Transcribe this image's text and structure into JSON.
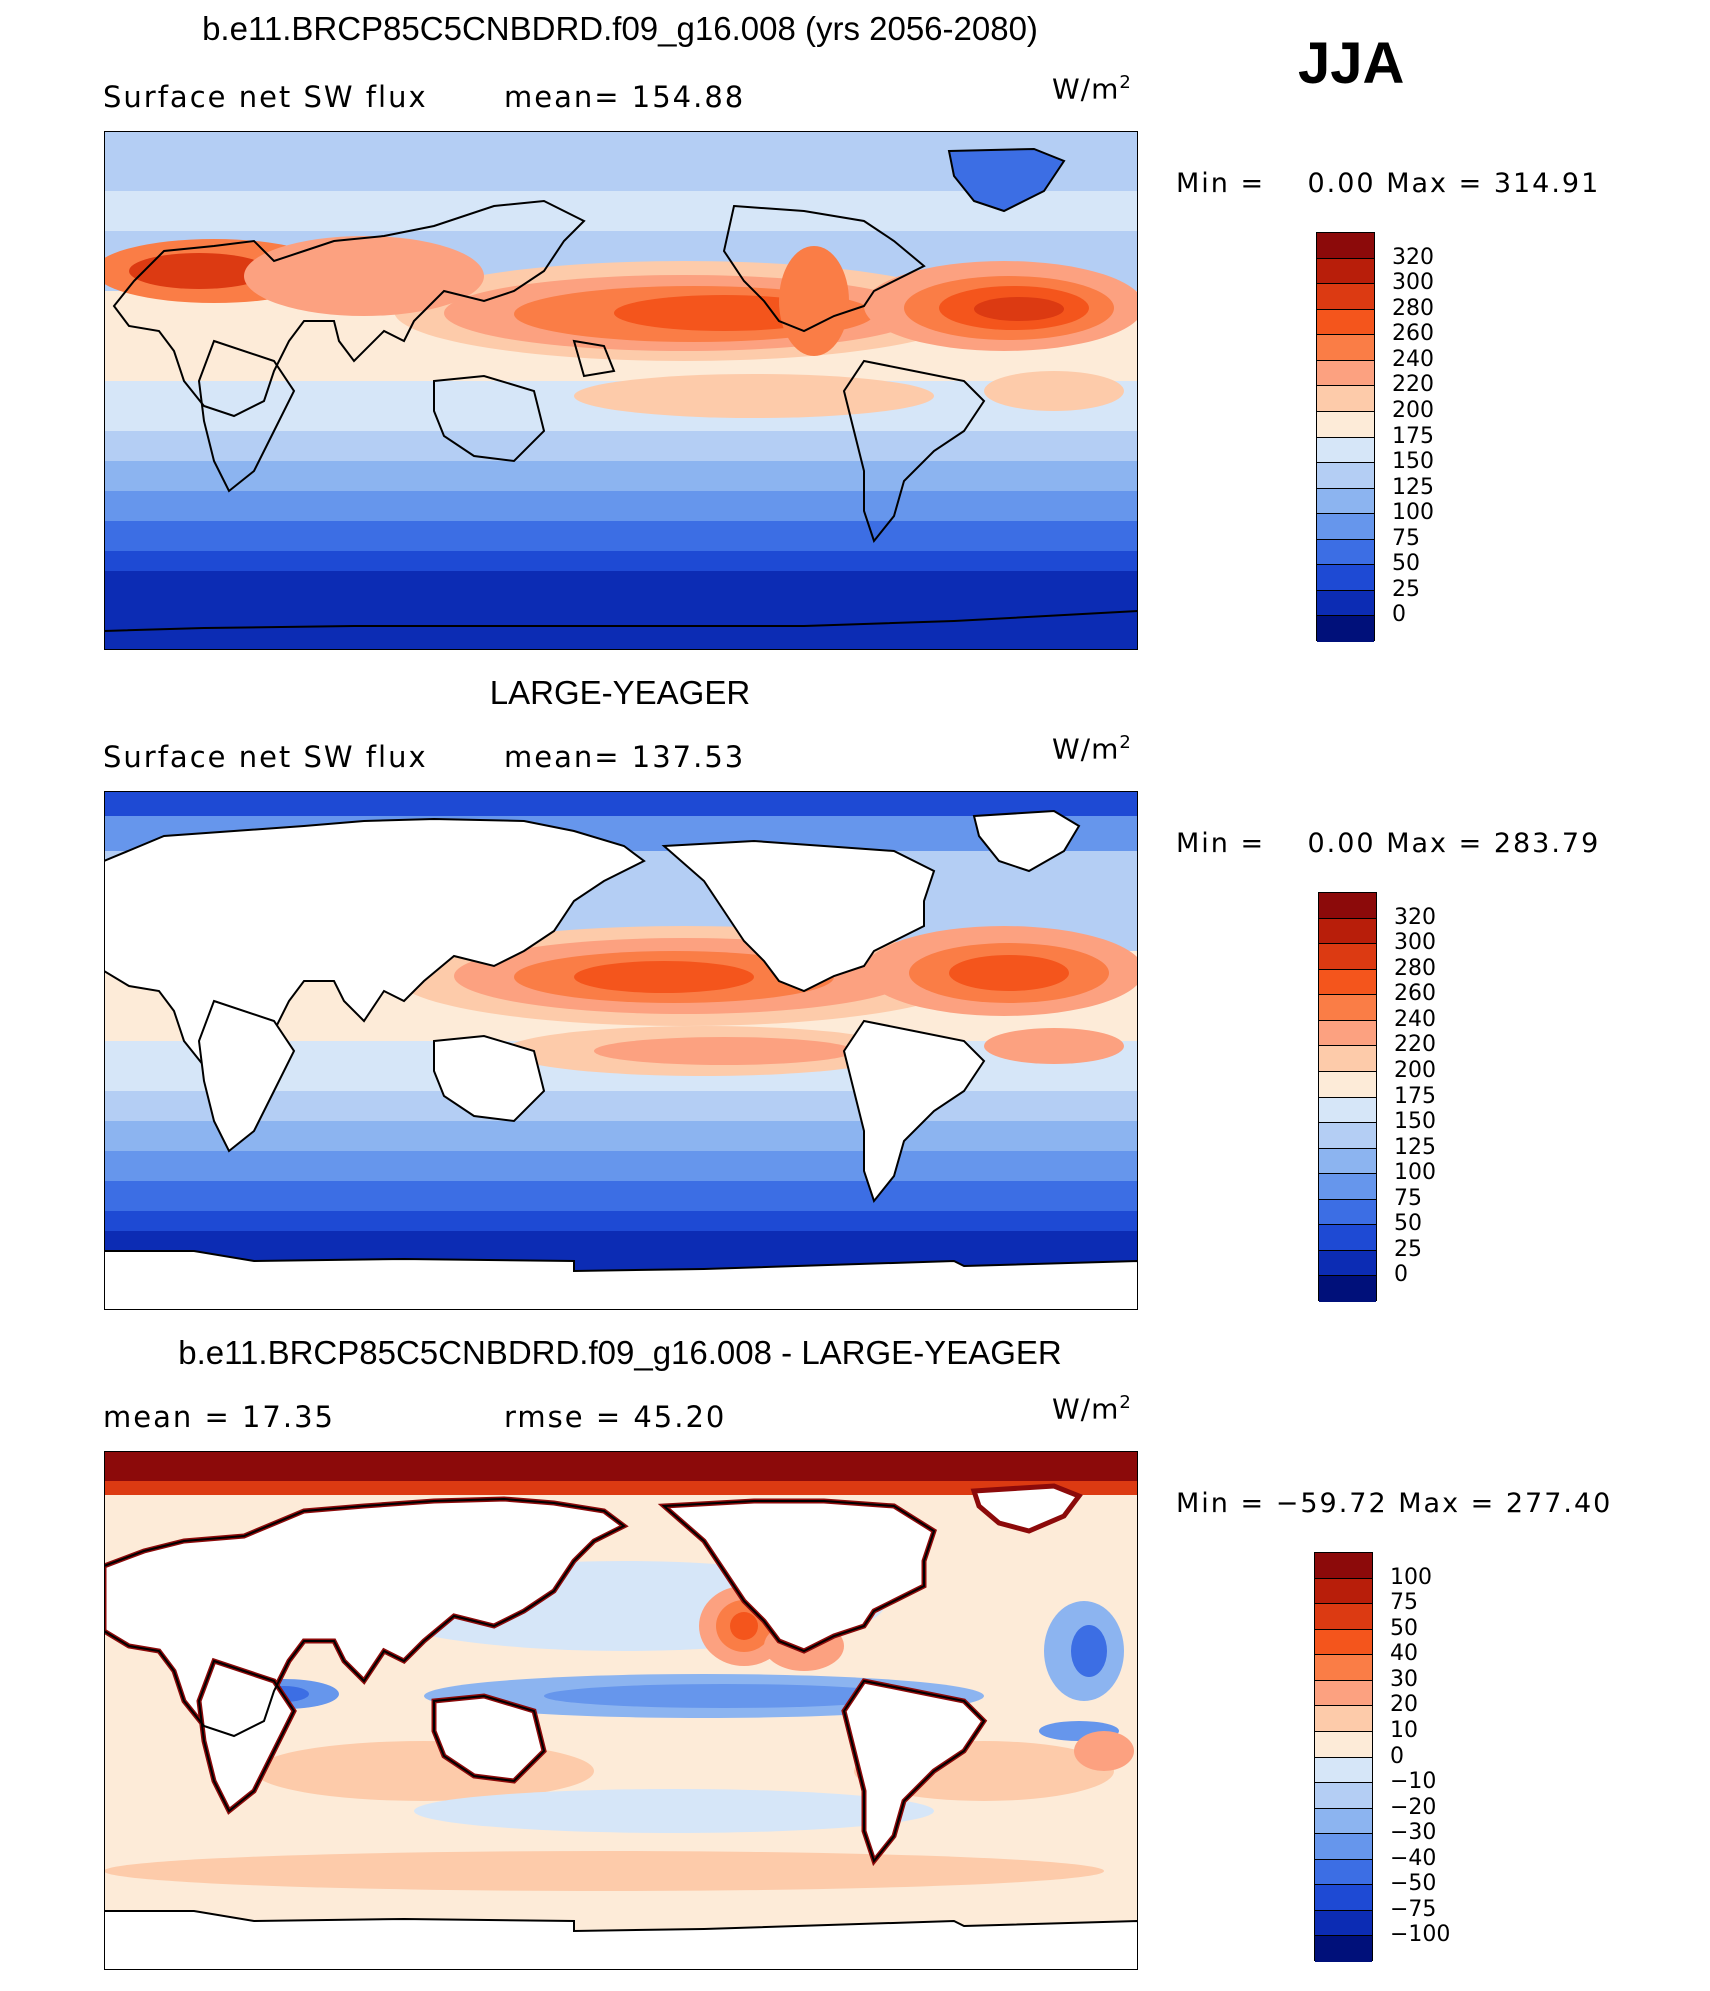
{
  "season": "JJA",
  "panels": [
    {
      "title": "b.e11.BRCP85C5CNBDRD.f09_g16.008 (yrs 2056-2080)",
      "left_label": "Surface net SW flux",
      "mid_label": "mean=  154.88",
      "units": "W/m",
      "units_exp": "2",
      "min_label": "Min =",
      "min_value": "0.00",
      "max_label": "Max =",
      "max_value": "314.91",
      "levels": [
        "320",
        "300",
        "280",
        "260",
        "240",
        "220",
        "200",
        "175",
        "150",
        "125",
        "100",
        "75",
        "50",
        "25",
        "0"
      ],
      "colors": [
        "#8c0a0a",
        "#b81e0a",
        "#dc3a12",
        "#f4551c",
        "#fa7d46",
        "#fca180",
        "#fdcbaa",
        "#fdebd8",
        "#d6e6f8",
        "#b4cef4",
        "#8cb4f0",
        "#6696ec",
        "#3c6ee4",
        "#1e4ad4",
        "#0c2cb4",
        "#00107a"
      ],
      "land_fill": false
    },
    {
      "title": "LARGE-YEAGER",
      "left_label": "Surface net SW flux",
      "mid_label": "mean=  137.53",
      "units": "W/m",
      "units_exp": "2",
      "min_label": "Min =",
      "min_value": "0.00",
      "max_label": "Max =",
      "max_value": "283.79",
      "levels": [
        "320",
        "300",
        "280",
        "260",
        "240",
        "220",
        "200",
        "175",
        "150",
        "125",
        "100",
        "75",
        "50",
        "25",
        "0"
      ],
      "colors": [
        "#8c0a0a",
        "#b81e0a",
        "#dc3a12",
        "#f4551c",
        "#fa7d46",
        "#fca180",
        "#fdcbaa",
        "#fdebd8",
        "#d6e6f8",
        "#b4cef4",
        "#8cb4f0",
        "#6696ec",
        "#3c6ee4",
        "#1e4ad4",
        "#0c2cb4",
        "#00107a"
      ],
      "land_fill": true
    },
    {
      "title": "b.e11.BRCP85C5CNBDRD.f09_g16.008 - LARGE-YEAGER",
      "left_label": "mean =    17.35",
      "mid_label": "rmse =    45.20",
      "units": "W/m",
      "units_exp": "2",
      "min_label": "Min =",
      "min_value": "−59.72",
      "max_label": "Max =",
      "max_value": "277.40",
      "levels": [
        "100",
        "75",
        "50",
        "40",
        "30",
        "20",
        "10",
        "0",
        "−10",
        "−20",
        "−30",
        "−40",
        "−50",
        "−75",
        "−100"
      ],
      "colors": [
        "#8c0a0a",
        "#b81e0a",
        "#dc3a12",
        "#f4551c",
        "#fa7d46",
        "#fca180",
        "#fdcbaa",
        "#fdebd8",
        "#d6e6f8",
        "#b4cef4",
        "#8cb4f0",
        "#6696ec",
        "#3c6ee4",
        "#1e4ad4",
        "#0c2cb4",
        "#00107a"
      ],
      "land_fill": true
    }
  ]
}
